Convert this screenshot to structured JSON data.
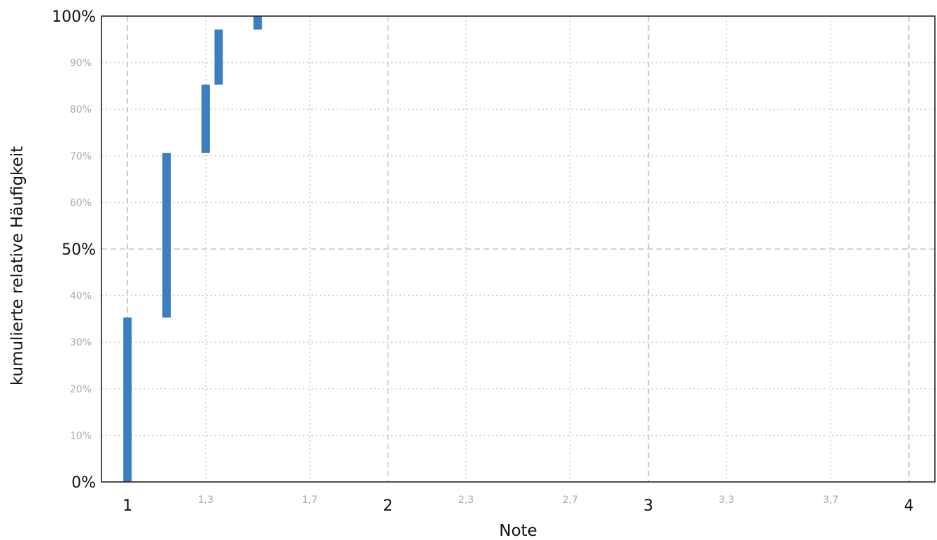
{
  "chart_data": {
    "type": "bar",
    "title": "",
    "xlabel": "Note",
    "ylabel": "kumulierte relative Häufigkeit",
    "xlim": [
      0.9,
      4.1
    ],
    "ylim": [
      0,
      100
    ],
    "bar_style": "floating",
    "bar_color": "#3d7ebf",
    "grid": "on",
    "legend": "none",
    "x_ticks_major": [
      {
        "value": 1,
        "label": "1"
      },
      {
        "value": 2,
        "label": "2"
      },
      {
        "value": 3,
        "label": "3"
      },
      {
        "value": 4,
        "label": "4"
      }
    ],
    "x_ticks_minor": [
      {
        "value": 1.3,
        "label": "1,3"
      },
      {
        "value": 1.7,
        "label": "1,7"
      },
      {
        "value": 2.3,
        "label": "2,3"
      },
      {
        "value": 2.7,
        "label": "2,7"
      },
      {
        "value": 3.3,
        "label": "3,3"
      },
      {
        "value": 3.7,
        "label": "3,7"
      }
    ],
    "y_ticks_major": [
      {
        "value": 0,
        "label": "0%"
      },
      {
        "value": 50,
        "label": "50%"
      },
      {
        "value": 100,
        "label": "100%"
      }
    ],
    "y_ticks_minor": [
      {
        "value": 10,
        "label": "10%"
      },
      {
        "value": 20,
        "label": "20%"
      },
      {
        "value": 30,
        "label": "30%"
      },
      {
        "value": 40,
        "label": "40%"
      },
      {
        "value": 60,
        "label": "60%"
      },
      {
        "value": 70,
        "label": "70%"
      },
      {
        "value": 80,
        "label": "80%"
      },
      {
        "value": 90,
        "label": "90%"
      }
    ],
    "bars": [
      {
        "x": 1.0,
        "from": 0,
        "to": 35.3
      },
      {
        "x": 1.15,
        "from": 35.3,
        "to": 70.6
      },
      {
        "x": 1.3,
        "from": 70.6,
        "to": 85.3
      },
      {
        "x": 1.35,
        "from": 85.3,
        "to": 97.1
      },
      {
        "x": 1.5,
        "from": 97.1,
        "to": 100
      }
    ]
  }
}
